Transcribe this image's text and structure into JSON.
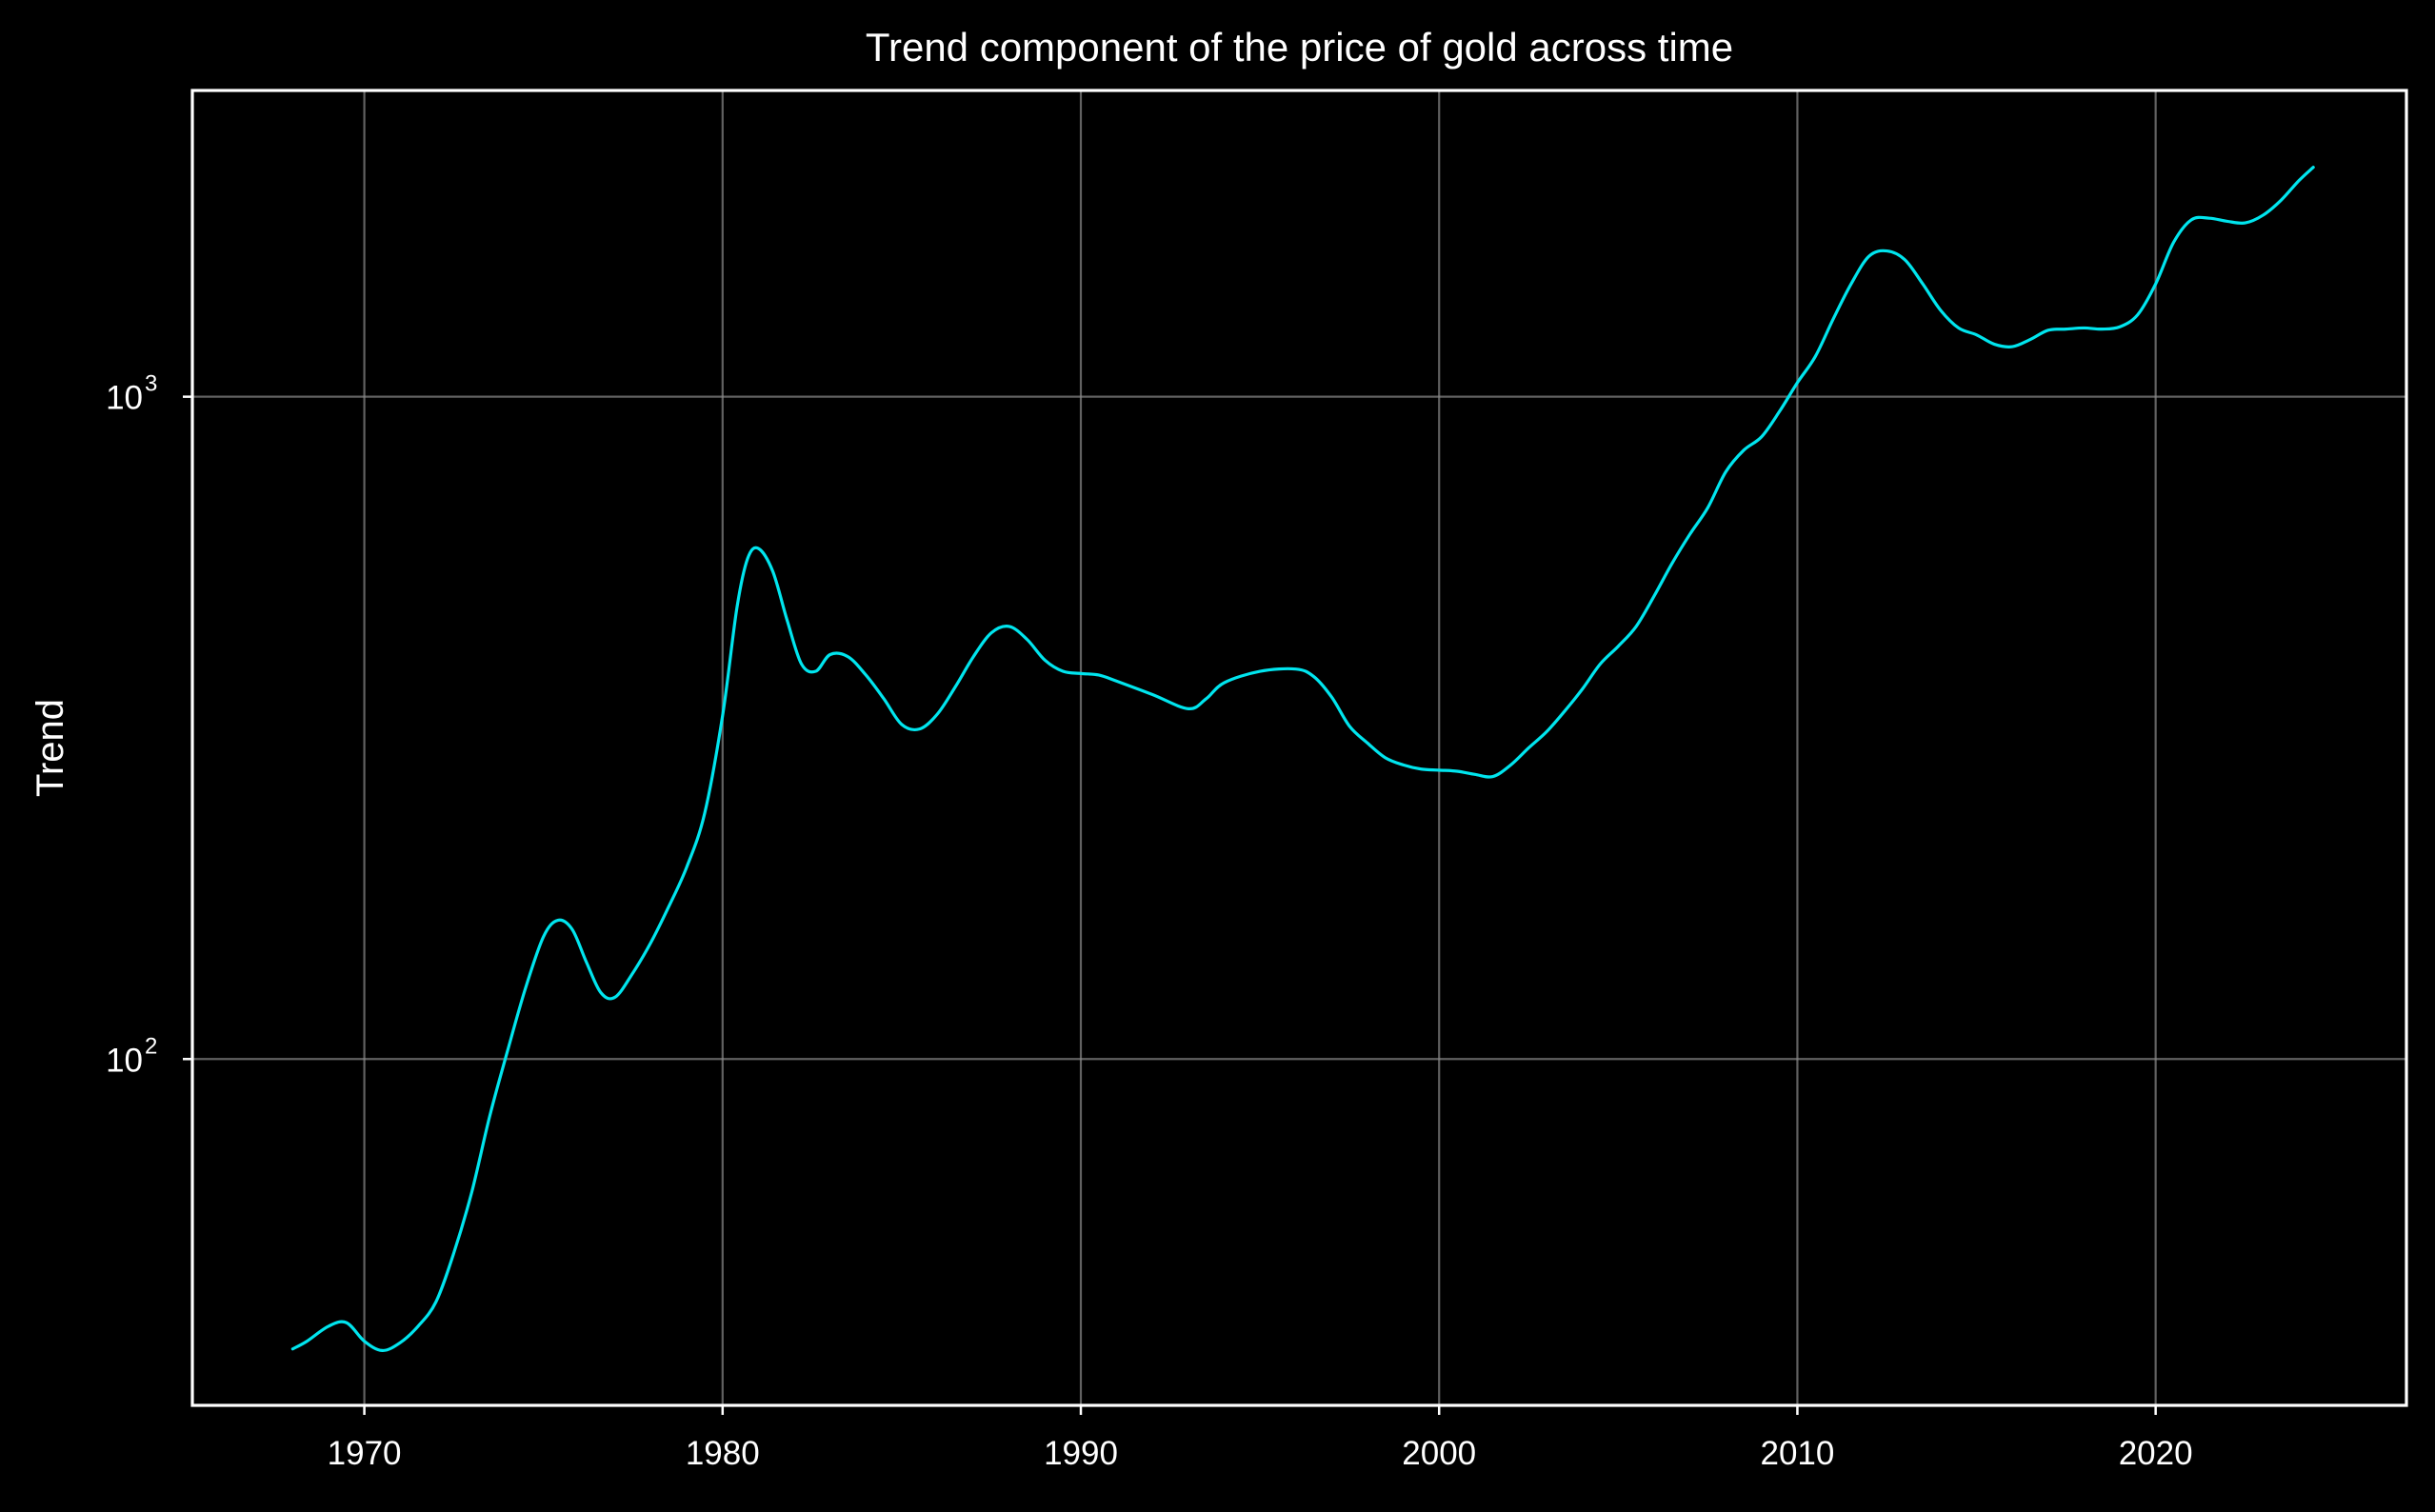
{
  "chart_data": {
    "type": "line",
    "title": "Trend component of the price of gold across time",
    "xlabel": "",
    "ylabel": "Trend",
    "yscale": "log",
    "xlim": [
      1965.2,
      2027.0
    ],
    "ylim": [
      30,
      2900
    ],
    "grid": true,
    "legend": "none",
    "xticks": [
      1970,
      1980,
      1990,
      2000,
      2010,
      2020
    ],
    "xtick_labels": [
      "1970",
      "1980",
      "1990",
      "2000",
      "2010",
      "2020"
    ],
    "yticks": [
      {
        "value": 100,
        "base": "10",
        "exponent": "2"
      },
      {
        "value": 1000,
        "base": "10",
        "exponent": "3"
      }
    ],
    "colors": {
      "background": "#000000",
      "line": "#00e5ee",
      "text": "#ffffff",
      "grid": "#8a8a8a"
    },
    "series": [
      {
        "x": [
          1968.0,
          1968.4,
          1969.0,
          1969.5,
          1970.0,
          1970.5,
          1971.0,
          1971.5,
          1972.0,
          1972.5,
          1973.0,
          1973.5,
          1974.0,
          1974.5,
          1975.0,
          1975.4,
          1975.8,
          1976.2,
          1976.6,
          1977.0,
          1977.5,
          1978.0,
          1978.5,
          1979.0,
          1979.5,
          1980.0,
          1980.4,
          1980.7,
          1981.0,
          1981.4,
          1981.8,
          1982.2,
          1982.6,
          1983.0,
          1983.5,
          1984.0,
          1984.5,
          1985.0,
          1985.5,
          1986.0,
          1986.5,
          1987.0,
          1987.5,
          1988.0,
          1988.5,
          1989.0,
          1989.5,
          1990.0,
          1990.5,
          1991.0,
          1992.0,
          1993.0,
          1993.5,
          1994.0,
          1995.0,
          1996.0,
          1996.5,
          1997.0,
          1997.5,
          1998.0,
          1998.5,
          1999.0,
          1999.5,
          2000.0,
          2000.5,
          2001.0,
          2001.5,
          2002.0,
          2002.5,
          2003.0,
          2003.5,
          2004.0,
          2004.5,
          2005.0,
          2005.5,
          2006.0,
          2006.5,
          2007.0,
          2007.5,
          2008.0,
          2008.5,
          2009.0,
          2009.5,
          2010.0,
          2010.5,
          2011.0,
          2011.5,
          2012.0,
          2012.5,
          2013.0,
          2013.5,
          2014.0,
          2014.5,
          2015.0,
          2015.5,
          2016.0,
          2016.5,
          2017.0,
          2017.5,
          2018.0,
          2018.5,
          2019.0,
          2019.5,
          2020.0,
          2020.5,
          2021.0,
          2021.5,
          2022.0,
          2022.5,
          2023.0,
          2023.5,
          2024.0,
          2024.4
        ],
        "y": [
          36.5,
          37.5,
          39.5,
          40.0,
          37.5,
          36.3,
          37.3,
          39.5,
          43.0,
          51.0,
          63.0,
          82.0,
          103.0,
          128.0,
          153.0,
          162.0,
          157.0,
          140.0,
          126.0,
          124.0,
          135.0,
          150.0,
          170.0,
          195.0,
          235.0,
          330.0,
          480.0,
          570.0,
          590.0,
          545.0,
          460.0,
          395.0,
          385.0,
          408.0,
          405.0,
          380.0,
          350.0,
          320.0,
          315.0,
          332.0,
          365.0,
          405.0,
          440.0,
          450.0,
          430.0,
          400.0,
          385.0,
          382.0,
          380.0,
          372.0,
          355.0,
          338.0,
          350.0,
          370.0,
          385.0,
          388.0,
          378.0,
          352.0,
          318.0,
          300.0,
          285.0,
          278.0,
          274.0,
          273.0,
          272.0,
          269.0,
          267.0,
          278.0,
          295.0,
          312.0,
          335.0,
          362.0,
          395.0,
          420.0,
          450.0,
          500.0,
          560.0,
          620.0,
          680.0,
          770.0,
          830.0,
          870.0,
          950.0,
          1050.0,
          1150.0,
          1310.0,
          1480.0,
          1630.0,
          1660.0,
          1610.0,
          1480.0,
          1350.0,
          1270.0,
          1240.0,
          1200.0,
          1190.0,
          1220.0,
          1260.0,
          1265.0,
          1270.0,
          1265.0,
          1275.0,
          1330.0,
          1480.0,
          1710.0,
          1850.0,
          1860.0,
          1840.0,
          1830.0,
          1880.0,
          1980.0,
          2120.0,
          2220.0
        ]
      }
    ]
  }
}
